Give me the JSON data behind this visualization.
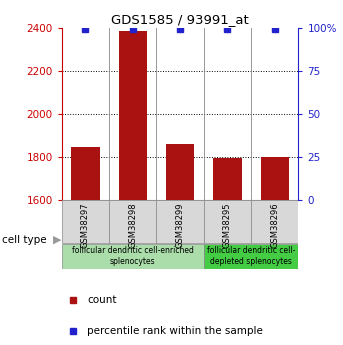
{
  "title": "GDS1585 / 93991_at",
  "samples": [
    "GSM38297",
    "GSM38298",
    "GSM38299",
    "GSM38295",
    "GSM38296"
  ],
  "counts": [
    1848,
    2385,
    1862,
    1793,
    1798
  ],
  "percentiles": [
    99,
    99,
    99,
    99,
    99
  ],
  "ylim_left": [
    1600,
    2400
  ],
  "ylim_right": [
    0,
    100
  ],
  "yticks_left": [
    1600,
    1800,
    2000,
    2200,
    2400
  ],
  "yticks_right": [
    0,
    25,
    50,
    75,
    100
  ],
  "bar_color": "#aa1111",
  "dot_color": "#2222cc",
  "group1_label": "follicular dendritic cell-enriched\nsplenocytes",
  "group2_label": "follicular dendritic cell-\ndepleted splenocytes",
  "group1_indices": [
    0,
    1,
    2
  ],
  "group2_indices": [
    3,
    4
  ],
  "group1_color": "#aaddaa",
  "group2_color": "#44cc44",
  "label_color_count": "#cc0000",
  "label_color_percentile": "#2222cc",
  "legend_count": "count",
  "legend_percentile": "percentile rank within the sample",
  "cell_type_label": "cell type",
  "bar_width": 0.6
}
